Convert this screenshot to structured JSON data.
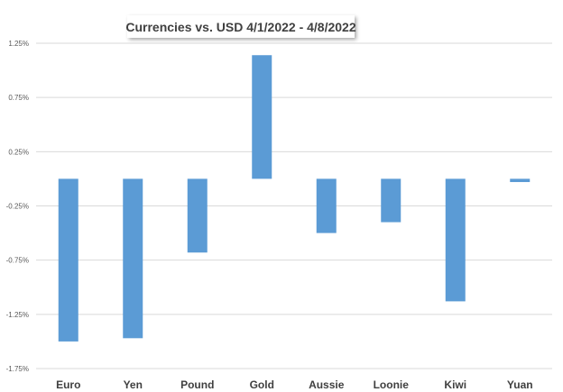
{
  "chart_data": {
    "type": "bar",
    "title": "Currencies vs. USD 4/1/2022 - 4/8/2022",
    "categories": [
      "Euro",
      "Yen",
      "Pound",
      "Gold",
      "Aussie",
      "Loonie",
      "Kiwi",
      "Yuan"
    ],
    "values": [
      -1.5,
      -1.47,
      -0.68,
      1.14,
      -0.5,
      -0.4,
      -1.13,
      -0.03
    ],
    "ylim": [
      -1.75,
      1.25
    ],
    "yticks": [
      "1.25%",
      "0.75%",
      "0.25%",
      "-0.25%",
      "-0.75%",
      "-1.25%",
      "-1.75%"
    ],
    "ytick_values": [
      1.25,
      0.75,
      0.25,
      -0.25,
      -0.75,
      -1.25,
      -1.75
    ],
    "xlabel": "",
    "ylabel": "",
    "grid": true,
    "legend": "none",
    "colors": {
      "bar": "#5b9bd5",
      "grid": "#d9d9d9",
      "text": "#404040"
    }
  }
}
